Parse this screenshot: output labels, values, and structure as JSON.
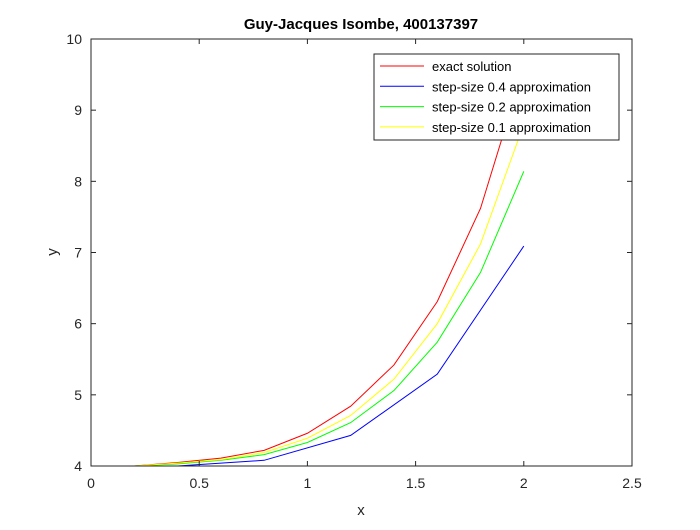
{
  "chart_data": {
    "type": "line",
    "title": "Guy-Jacques Isombe, 400137397",
    "xlabel": "x",
    "ylabel": "y",
    "xlim": [
      0,
      2.5
    ],
    "ylim": [
      4,
      10
    ],
    "xticks": [
      "0",
      "0.5",
      "1",
      "1.5",
      "2",
      "2.5"
    ],
    "yticks": [
      "4",
      "5",
      "6",
      "7",
      "8",
      "9",
      "10"
    ],
    "grid": false,
    "legend_position": "top-right",
    "series": [
      {
        "name": "exact solution",
        "color": "#ff0000",
        "x": [
          0,
          0.2,
          0.4,
          0.6,
          0.8,
          1.0,
          1.2,
          1.4,
          1.6,
          1.8,
          2.0
        ],
        "y": [
          4.0,
          4.0,
          4.05,
          4.11,
          4.22,
          4.46,
          4.84,
          5.42,
          6.31,
          7.62,
          9.6
        ]
      },
      {
        "name": "step-size 0.4 approximation",
        "color": "#0000ff",
        "x": [
          0,
          0.4,
          0.8,
          1.2,
          1.6,
          2.0
        ],
        "y": [
          4.0,
          4.0,
          4.08,
          4.43,
          5.29,
          7.09
        ]
      },
      {
        "name": "step-size 0.2 approximation",
        "color": "#00ff00",
        "x": [
          0,
          0.2,
          0.4,
          0.6,
          0.8,
          1.0,
          1.2,
          1.4,
          1.6,
          1.8,
          2.0
        ],
        "y": [
          4.0,
          4.0,
          4.03,
          4.08,
          4.16,
          4.33,
          4.61,
          5.06,
          5.74,
          6.72,
          8.14
        ]
      },
      {
        "name": "step-size 0.1 approximation",
        "color": "#ffff00",
        "x": [
          0,
          0.2,
          0.4,
          0.6,
          0.8,
          1.0,
          1.2,
          1.4,
          1.6,
          1.8,
          2.0
        ],
        "y": [
          4.0,
          4.0,
          4.04,
          4.09,
          4.19,
          4.39,
          4.71,
          5.22,
          6.0,
          7.12,
          8.8
        ]
      }
    ]
  }
}
